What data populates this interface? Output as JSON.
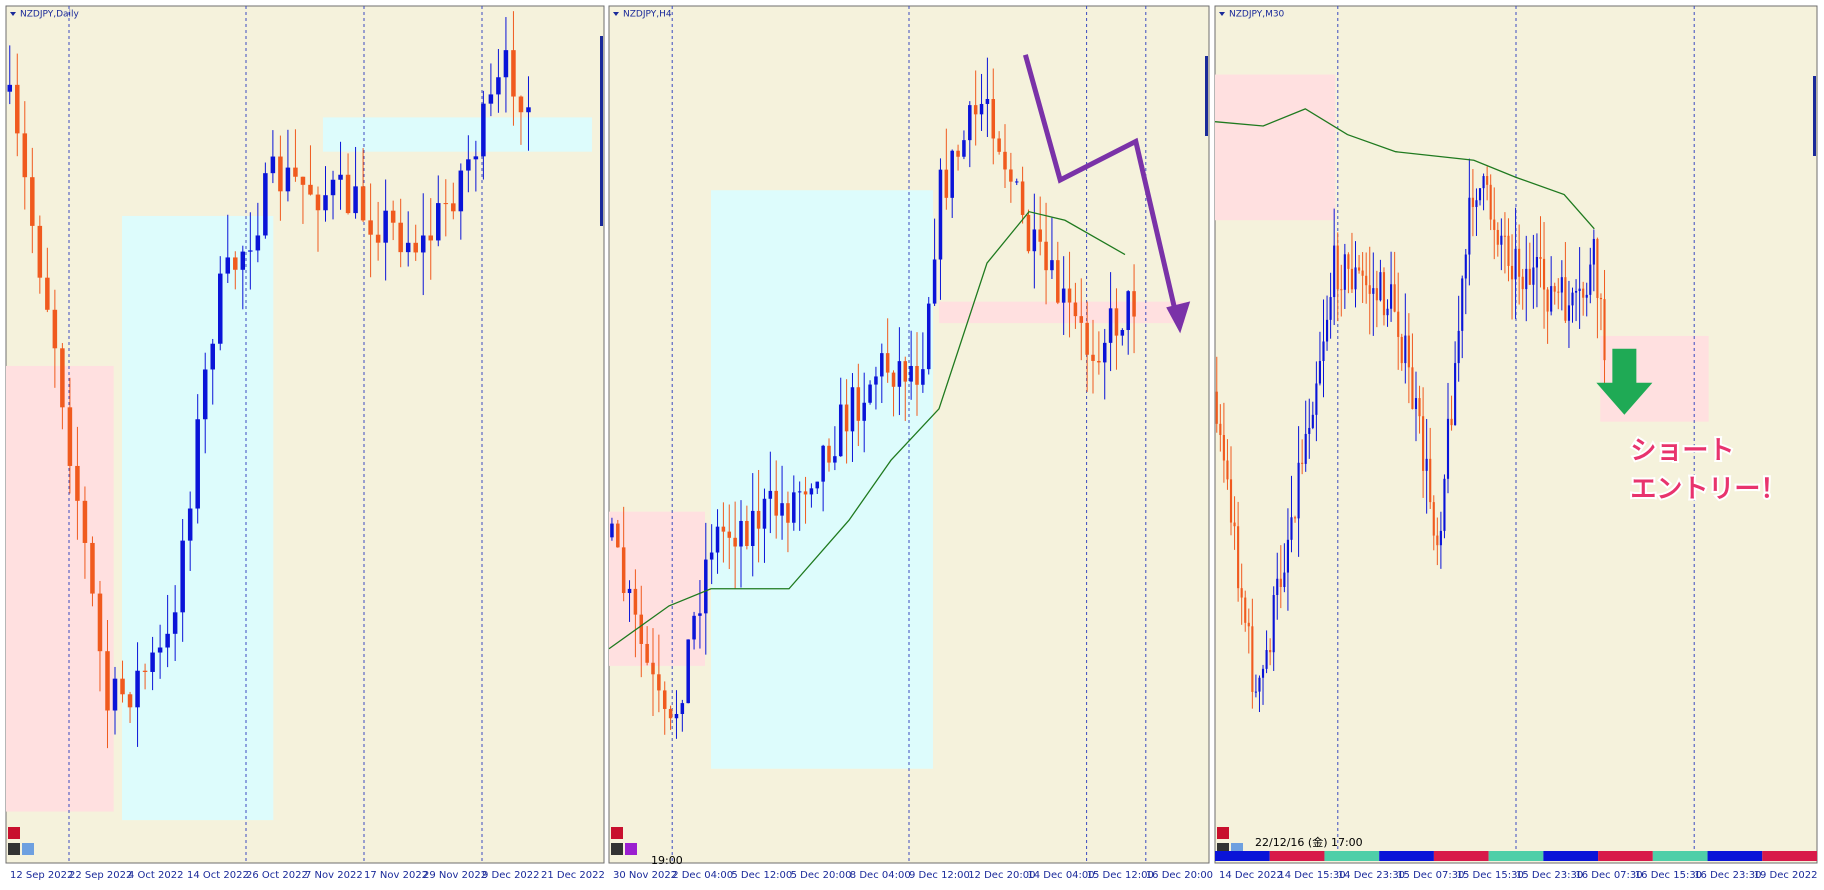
{
  "panes": [
    {
      "title": "NZDJPY,Daily",
      "x_labels": [
        "12 Sep 2022",
        "22 Sep 2022",
        "4 Oct 2022",
        "14 Oct 2022",
        "26 Oct 2022",
        "7 Nov 2022",
        "17 Nov 2022",
        "29 Nov 2022",
        "9 Dec 2022",
        "21 Dec 2022"
      ]
    },
    {
      "title": "NZDJPY,H4",
      "x_labels": [
        "30 Nov 2022",
        "2 Dec 04:00",
        "5 Dec 12:00",
        "5 Dec 20:00",
        "8 Dec 04:00",
        "9 Dec 12:00",
        "12 Dec 20:00",
        "14 Dec 04:00",
        "15 Dec 12:00",
        "16 Dec 20:00"
      ],
      "cursor_time": "19:00"
    },
    {
      "title": "NZDJPY,M30",
      "x_labels": [
        "14 Dec 2022",
        "14 Dec 15:30",
        "14 Dec 23:30",
        "15 Dec 07:30",
        "15 Dec 15:30",
        "15 Dec 23:30",
        "16 Dec 07:30",
        "16 Dec 15:30",
        "16 Dec 23:30",
        "19 Dec 2022"
      ],
      "cursor_time": "22/12/16 (金) 17:00",
      "annotation": [
        "ショート",
        "エントリー！"
      ]
    }
  ]
}
